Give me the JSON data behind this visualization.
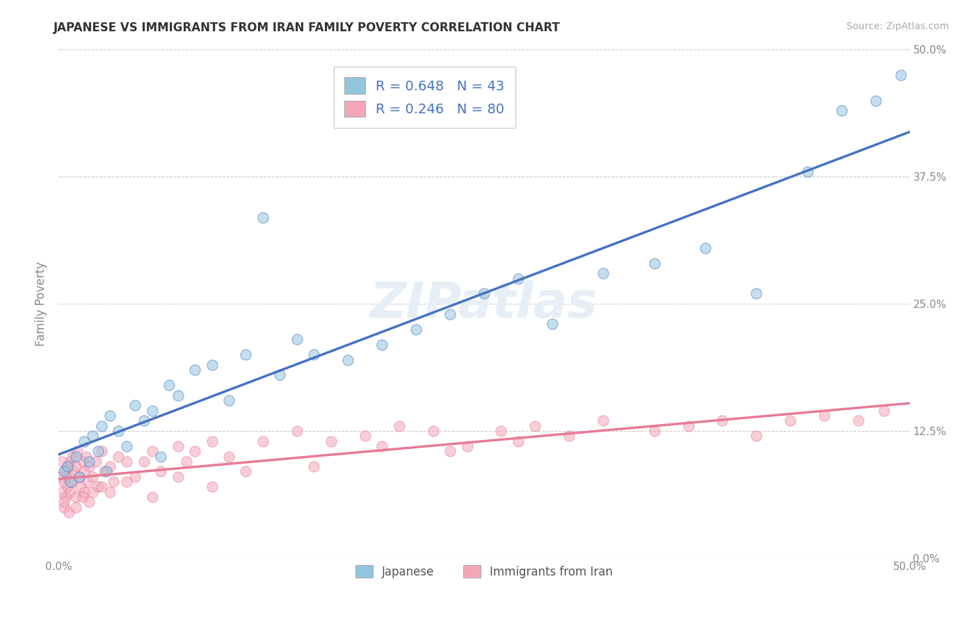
{
  "title": "JAPANESE VS IMMIGRANTS FROM IRAN FAMILY POVERTY CORRELATION CHART",
  "source": "Source: ZipAtlas.com",
  "ylabel": "Family Poverty",
  "xlim": [
    0,
    50
  ],
  "ylim": [
    0,
    50
  ],
  "legend_label1": "Japanese",
  "legend_label2": "Immigrants from Iran",
  "R1": 0.648,
  "N1": 43,
  "R2": 0.246,
  "N2": 80,
  "color_blue": "#92c5de",
  "color_pink": "#f4a6b8",
  "color_blue_dark": "#4472C4",
  "color_pink_dark": "#e87a96",
  "watermark_color": "#e8eef5",
  "japanese_x": [
    0.3,
    0.5,
    0.7,
    1.0,
    1.2,
    1.5,
    1.8,
    2.0,
    2.3,
    2.5,
    2.8,
    3.0,
    3.5,
    4.0,
    4.5,
    5.0,
    5.5,
    6.0,
    6.5,
    7.0,
    8.0,
    9.0,
    10.0,
    11.0,
    12.0,
    13.0,
    14.0,
    15.0,
    17.0,
    19.0,
    21.0,
    23.0,
    25.0,
    27.0,
    29.0,
    32.0,
    35.0,
    38.0,
    41.0,
    44.0,
    46.0,
    48.0,
    49.5
  ],
  "japanese_y": [
    8.5,
    9.0,
    7.5,
    10.0,
    8.0,
    11.5,
    9.5,
    12.0,
    10.5,
    13.0,
    8.5,
    14.0,
    12.5,
    11.0,
    15.0,
    13.5,
    14.5,
    10.0,
    17.0,
    16.0,
    18.5,
    19.0,
    15.5,
    20.0,
    33.5,
    18.0,
    21.5,
    20.0,
    19.5,
    21.0,
    22.5,
    24.0,
    26.0,
    27.5,
    23.0,
    28.0,
    29.0,
    30.5,
    26.0,
    38.0,
    44.0,
    45.0,
    47.5
  ],
  "iran_x": [
    0.1,
    0.2,
    0.2,
    0.3,
    0.3,
    0.4,
    0.4,
    0.5,
    0.5,
    0.6,
    0.7,
    0.7,
    0.8,
    0.8,
    0.9,
    1.0,
    1.0,
    1.1,
    1.2,
    1.3,
    1.4,
    1.5,
    1.5,
    1.6,
    1.7,
    1.8,
    2.0,
    2.0,
    2.2,
    2.3,
    2.5,
    2.7,
    3.0,
    3.2,
    3.5,
    4.0,
    4.5,
    5.0,
    5.5,
    6.0,
    7.0,
    7.5,
    8.0,
    9.0,
    10.0,
    12.0,
    14.0,
    16.0,
    18.0,
    20.0,
    22.0,
    24.0,
    26.0,
    28.0,
    30.0,
    32.0,
    35.0,
    37.0,
    39.0,
    41.0,
    43.0,
    45.0,
    47.0,
    48.5,
    0.3,
    0.6,
    1.0,
    1.4,
    1.8,
    2.5,
    3.0,
    4.0,
    5.5,
    7.0,
    9.0,
    11.0,
    15.0,
    19.0,
    23.0,
    27.0
  ],
  "iran_y": [
    8.0,
    6.5,
    9.5,
    5.0,
    7.5,
    8.5,
    6.0,
    9.0,
    7.0,
    8.0,
    9.5,
    6.5,
    10.0,
    7.5,
    8.5,
    9.0,
    6.0,
    10.5,
    8.0,
    7.0,
    9.5,
    8.5,
    6.5,
    10.0,
    7.5,
    9.0,
    8.0,
    6.5,
    9.5,
    7.0,
    10.5,
    8.5,
    9.0,
    7.5,
    10.0,
    9.5,
    8.0,
    9.5,
    10.5,
    8.5,
    11.0,
    9.5,
    10.5,
    11.5,
    10.0,
    11.5,
    12.5,
    11.5,
    12.0,
    13.0,
    12.5,
    11.0,
    12.5,
    13.0,
    12.0,
    13.5,
    12.5,
    13.0,
    13.5,
    12.0,
    13.5,
    14.0,
    13.5,
    14.5,
    5.5,
    4.5,
    5.0,
    6.0,
    5.5,
    7.0,
    6.5,
    7.5,
    6.0,
    8.0,
    7.0,
    8.5,
    9.0,
    11.0,
    10.5,
    11.5
  ]
}
